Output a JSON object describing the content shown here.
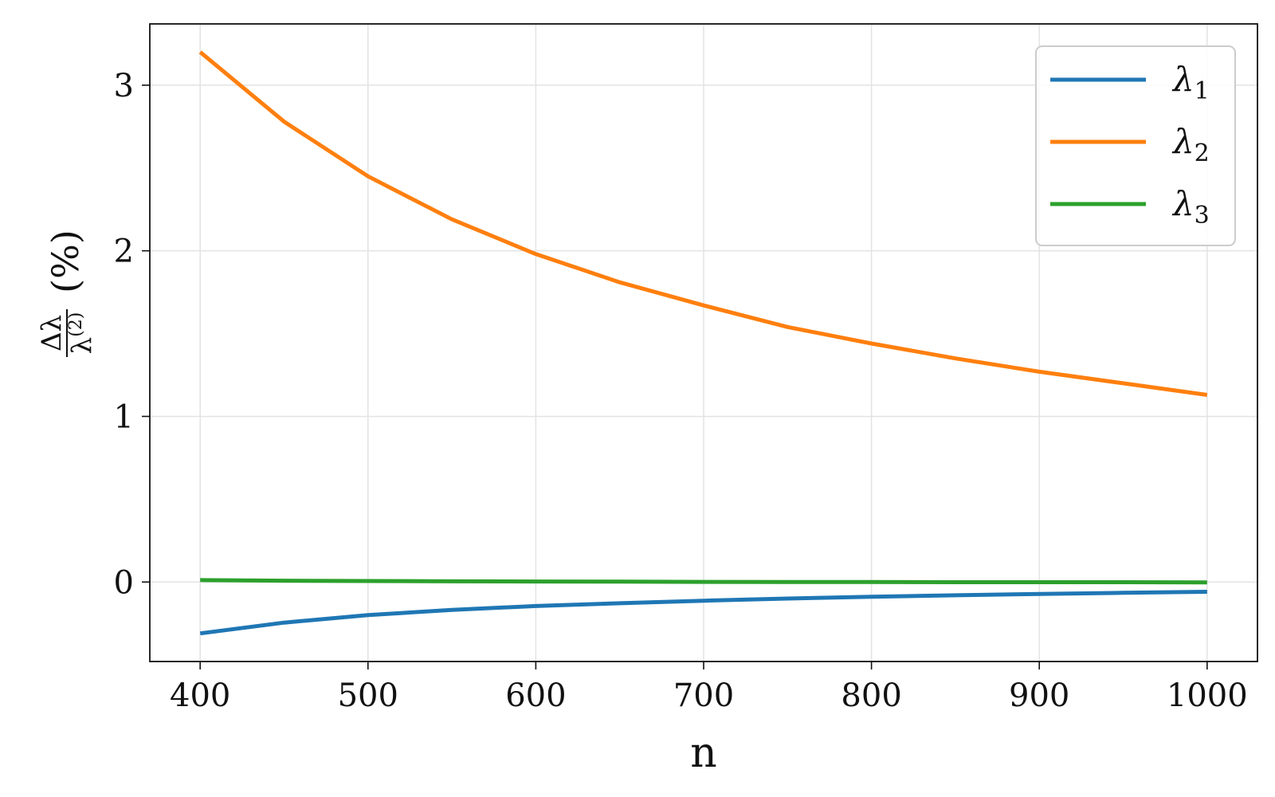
{
  "chart_data": {
    "type": "line",
    "xlabel": "n",
    "ylabel": {
      "numerator": "Δλ",
      "denominator_base": "λ",
      "denominator_sup": "(2)",
      "unit": "(%)"
    },
    "xlim": [
      370,
      1030
    ],
    "ylim": [
      -0.48,
      3.37
    ],
    "xticks": [
      400,
      500,
      600,
      700,
      800,
      900,
      1000
    ],
    "yticks": [
      0,
      1,
      2,
      3
    ],
    "grid": true,
    "legend_position": "top-right",
    "x": [
      400,
      450,
      500,
      550,
      600,
      650,
      700,
      750,
      800,
      850,
      900,
      950,
      1000
    ],
    "series": [
      {
        "name": "λ",
        "subscript": "1",
        "color": "#1f77b4",
        "values": [
          -0.31,
          -0.245,
          -0.2,
          -0.168,
          -0.145,
          -0.128,
          -0.113,
          -0.1,
          -0.089,
          -0.08,
          -0.072,
          -0.065,
          -0.059
        ]
      },
      {
        "name": "λ",
        "subscript": "2",
        "color": "#ff7f0e",
        "values": [
          3.2,
          2.78,
          2.45,
          2.19,
          1.98,
          1.81,
          1.67,
          1.54,
          1.44,
          1.35,
          1.27,
          1.2,
          1.13
        ]
      },
      {
        "name": "λ",
        "subscript": "3",
        "color": "#2ca02c",
        "values": [
          0.012,
          0.008,
          0.006,
          0.004,
          0.003,
          0.002,
          0.001,
          0.0,
          0.0,
          -0.001,
          -0.001,
          -0.001,
          -0.002
        ]
      }
    ]
  }
}
